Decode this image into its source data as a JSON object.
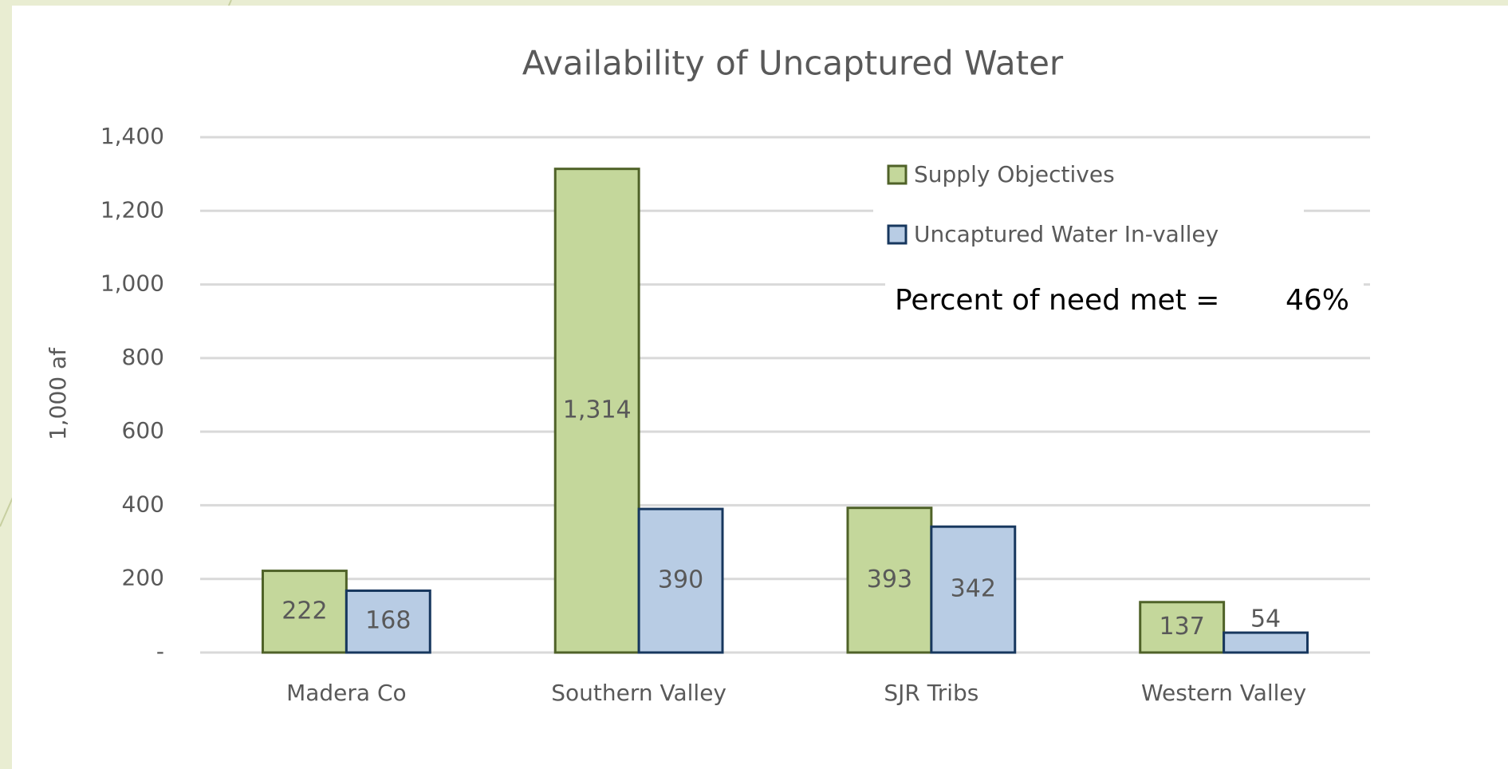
{
  "chart_data": {
    "type": "bar",
    "title": "Availability of Uncaptured Water",
    "y_label": "1,000 af",
    "categories": [
      "Madera Co",
      "Southern Valley",
      "SJR Tribs",
      "Western Valley"
    ],
    "series": [
      {
        "name": "Supply Objectives",
        "color": "#c4d79b",
        "edge": "#4f6228",
        "values": [
          222,
          1314,
          393,
          137
        ],
        "value_labels": [
          "222",
          "1,314",
          "393",
          "137"
        ]
      },
      {
        "name": "Uncaptured Water In-valley",
        "color": "#b8cce4",
        "edge": "#17375e",
        "values": [
          168,
          390,
          342,
          54
        ]
      }
    ],
    "ylim": [
      0,
      1400
    ],
    "yticks": [
      {
        "value": 0,
        "label": "-"
      },
      200,
      400,
      600,
      800,
      {
        "value": 1000,
        "label": "1,000"
      },
      {
        "value": 1200,
        "label": "1,200"
      },
      {
        "value": 1400,
        "label": "1,400"
      }
    ],
    "grid": true,
    "legend": "upper right",
    "annotation": {
      "text": "Percent of need met =",
      "value": 46,
      "label": "46%"
    }
  }
}
